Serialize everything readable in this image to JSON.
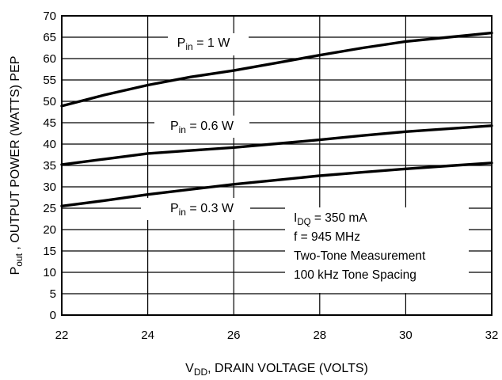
{
  "chart_data": {
    "type": "line",
    "xlabel": {
      "main": "V",
      "sub": "DD",
      "rest": ", DRAIN VOLTAGE (VOLTS)"
    },
    "ylabel": {
      "main": "P",
      "sub": "out",
      "rest": " , OUTPUT POWER (WATTS) PEP"
    },
    "xlim": [
      22,
      32
    ],
    "ylim": [
      0,
      70
    ],
    "xticks": [
      "22",
      "24",
      "26",
      "28",
      "30",
      "32"
    ],
    "yticks": [
      "0",
      "5",
      "10",
      "15",
      "20",
      "25",
      "30",
      "35",
      "40",
      "45",
      "50",
      "55",
      "60",
      "65",
      "70"
    ],
    "grid": true,
    "series": [
      {
        "name": {
          "main": "P",
          "sub": "in",
          "rest": " = 1 W"
        },
        "x": [
          22,
          23,
          24,
          25,
          26,
          27,
          28,
          29,
          30,
          31,
          32
        ],
        "y": [
          48.9,
          51.5,
          53.8,
          55.7,
          57.2,
          59.0,
          60.8,
          62.5,
          64.0,
          65.0,
          66.0
        ]
      },
      {
        "name": {
          "main": "P",
          "sub": "in",
          "rest": " = 0.6 W"
        },
        "x": [
          22,
          23,
          24,
          25,
          26,
          27,
          28,
          29,
          30,
          31,
          32
        ],
        "y": [
          35.2,
          36.5,
          37.8,
          38.5,
          39.2,
          40.1,
          41.0,
          42.0,
          42.9,
          43.6,
          44.3
        ]
      },
      {
        "name": {
          "main": "P",
          "sub": "in",
          "rest": " = 0.3 W"
        },
        "x": [
          22,
          23,
          24,
          25,
          26,
          27,
          28,
          29,
          30,
          31,
          32
        ],
        "y": [
          25.5,
          26.8,
          28.2,
          29.4,
          30.6,
          31.6,
          32.6,
          33.4,
          34.2,
          34.9,
          35.6
        ]
      }
    ],
    "annotations": [
      {
        "main": "I",
        "sub": "DQ",
        "rest": " = 350 mA"
      },
      {
        "main": "f = 945 MHz",
        "sub": "",
        "rest": ""
      },
      {
        "main": "Two-Tone Measurement",
        "sub": "",
        "rest": ""
      },
      {
        "main": "100 kHz Tone Spacing",
        "sub": "",
        "rest": ""
      }
    ],
    "line_color": "#000000",
    "grid_color": "#000000"
  }
}
